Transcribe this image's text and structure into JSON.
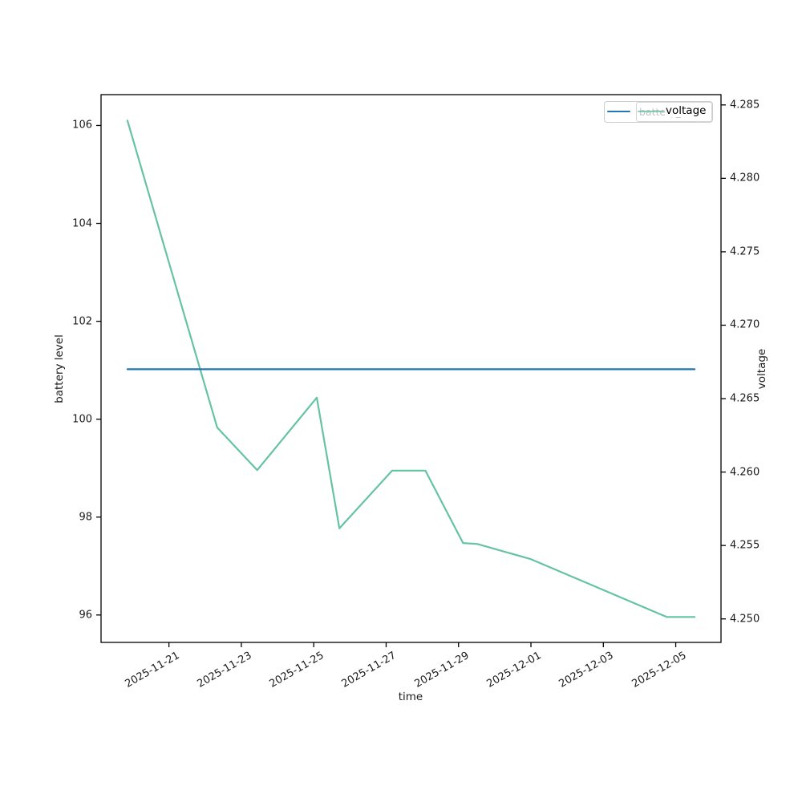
{
  "figure": {
    "background": "#ffffff",
    "axes_edge_color": "#000000",
    "tick_text_color": "#1a1a1a"
  },
  "legend": {
    "overlapped_entry": {
      "label": "battery_level",
      "color": "#66c2a5"
    },
    "top_entry": {
      "label": "voltage",
      "color": "#1f77b4"
    }
  },
  "chart_data": {
    "type": "line",
    "title": "",
    "xlabel": "time",
    "ylabel_left": "battery level",
    "ylabel_right": "voltage",
    "grid": false,
    "legend_position": "upper right",
    "x_ticks": [
      "2025-11-21",
      "2025-11-23",
      "2025-11-25",
      "2025-11-27",
      "2025-11-29",
      "2025-12-01",
      "2025-12-03",
      "2025-12-05"
    ],
    "x_tick_rotation_deg": 30,
    "y_left_ticks": [
      "96",
      "98",
      "100",
      "102",
      "104",
      "106"
    ],
    "y_right_ticks": [
      "4.250",
      "4.255",
      "4.260",
      "4.265",
      "4.270",
      "4.275",
      "4.280",
      "4.285"
    ],
    "xlim": [
      "2025-11-19T03:00",
      "2025-12-06T06:00"
    ],
    "ylim_left": [
      95.44,
      106.63
    ],
    "ylim_right": [
      4.2484,
      4.2857
    ],
    "series": [
      {
        "name": "battery_level",
        "axis": "left",
        "color": "#66c2a5",
        "points": [
          [
            "2025-11-19T20:30",
            106.1
          ],
          [
            "2025-11-22T08:00",
            99.83
          ],
          [
            "2025-11-23T10:30",
            98.96
          ],
          [
            "2025-11-25T02:00",
            100.44
          ],
          [
            "2025-11-25T17:00",
            97.77
          ],
          [
            "2025-11-27T04:00",
            98.95
          ],
          [
            "2025-11-28T02:00",
            98.95
          ],
          [
            "2025-11-29T03:00",
            97.47
          ],
          [
            "2025-11-29T12:30",
            97.45
          ],
          [
            "2025-12-01T00:00",
            97.14
          ],
          [
            "2025-12-04T18:00",
            95.96
          ],
          [
            "2025-12-05T12:30",
            95.96
          ]
        ]
      },
      {
        "name": "voltage",
        "axis": "right",
        "color": "#1f77b4",
        "points": [
          [
            "2025-11-19T20:30",
            4.267
          ],
          [
            "2025-12-05T12:30",
            4.267
          ]
        ]
      }
    ]
  }
}
